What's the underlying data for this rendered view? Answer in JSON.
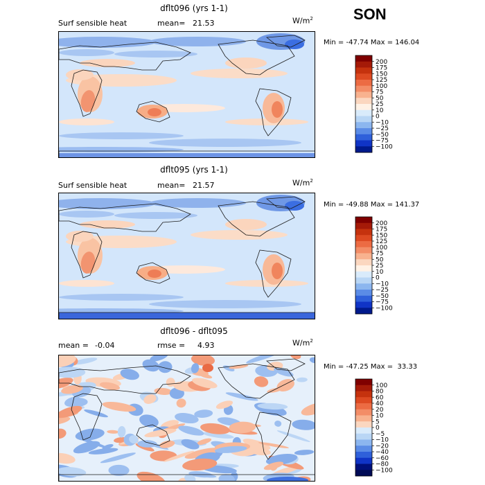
{
  "season": "SON",
  "panels": [
    {
      "title": "dflt096 (yrs 1-1)",
      "var_label": "Surf sensible heat",
      "stat1_label": "mean=",
      "stat1_value": "21.53",
      "stat2_label": "",
      "stat2_value": "",
      "units": "W/m",
      "units_sup": "2",
      "min_max": "Min = -47.74 Max = 146.04",
      "colorbar": {
        "levels": [
          "200",
          "175",
          "150",
          "125",
          "100",
          "75",
          "50",
          "25",
          "10",
          "0",
          "−10",
          "−25",
          "−50",
          "−75",
          "−100"
        ],
        "colors": [
          "#7f0000",
          "#a51a08",
          "#c5320e",
          "#dd4a22",
          "#ec6b43",
          "#f38d67",
          "#f8b28f",
          "#fbd7c0",
          "#fff2e6",
          "#d9ebfb",
          "#b9d6f5",
          "#8cb6ef",
          "#5b8ce6",
          "#2f60da",
          "#1034c6",
          "#001a8c"
        ]
      }
    },
    {
      "title": "dflt095 (yrs 1-1)",
      "var_label": "Surf sensible heat",
      "stat1_label": "mean=",
      "stat1_value": "21.57",
      "stat2_label": "",
      "stat2_value": "",
      "units": "W/m",
      "units_sup": "2",
      "min_max": "Min = -49.88 Max = 141.37",
      "colorbar": {
        "levels": [
          "200",
          "175",
          "150",
          "125",
          "100",
          "75",
          "50",
          "25",
          "10",
          "0",
          "−10",
          "−25",
          "−50",
          "−75",
          "−100"
        ],
        "colors": [
          "#7f0000",
          "#a51a08",
          "#c5320e",
          "#dd4a22",
          "#ec6b43",
          "#f38d67",
          "#f8b28f",
          "#fbd7c0",
          "#fff2e6",
          "#d9ebfb",
          "#b9d6f5",
          "#8cb6ef",
          "#5b8ce6",
          "#2f60da",
          "#1034c6",
          "#001a8c"
        ]
      }
    },
    {
      "title": "dflt096 - dflt095",
      "var_label": "",
      "stat1_label": "mean =",
      "stat1_value": "-0.04",
      "stat2_label": "rmse =",
      "stat2_value": "4.93",
      "units": "W/m",
      "units_sup": "2",
      "min_max": "Min = -47.25 Max =  33.33",
      "colorbar": {
        "levels": [
          "100",
          "80",
          "60",
          "40",
          "20",
          "10",
          "5",
          "0",
          "−5",
          "−10",
          "−20",
          "−40",
          "−60",
          "−80",
          "−100"
        ],
        "colors": [
          "#7f0000",
          "#a51a08",
          "#c5320e",
          "#dd4a22",
          "#ec6b43",
          "#f38d67",
          "#f8b28f",
          "#fbd7c0",
          "#d9ebfb",
          "#b9d6f5",
          "#8cb6ef",
          "#5b8ce6",
          "#2f60da",
          "#1034c6",
          "#00107a",
          "#000a55"
        ]
      }
    }
  ],
  "chart_data": [
    {
      "type": "heatmap",
      "title": "dflt096 (yrs 1-1)",
      "variable": "Surf sensible heat",
      "units": "W/m2",
      "mean": 21.53,
      "min": -47.74,
      "max": 146.04,
      "color_levels": [
        -100,
        -75,
        -50,
        -25,
        -10,
        0,
        10,
        25,
        50,
        75,
        100,
        125,
        150,
        175,
        200
      ]
    },
    {
      "type": "heatmap",
      "title": "dflt095 (yrs 1-1)",
      "variable": "Surf sensible heat",
      "units": "W/m2",
      "mean": 21.57,
      "min": -49.88,
      "max": 141.37,
      "color_levels": [
        -100,
        -75,
        -50,
        -25,
        -10,
        0,
        10,
        25,
        50,
        75,
        100,
        125,
        150,
        175,
        200
      ]
    },
    {
      "type": "heatmap",
      "title": "dflt096 - dflt095",
      "units": "W/m2",
      "mean": -0.04,
      "rmse": 4.93,
      "min": -47.25,
      "max": 33.33,
      "color_levels": [
        -100,
        -80,
        -60,
        -40,
        -20,
        -10,
        -5,
        0,
        5,
        10,
        20,
        40,
        60,
        80,
        100
      ]
    }
  ]
}
